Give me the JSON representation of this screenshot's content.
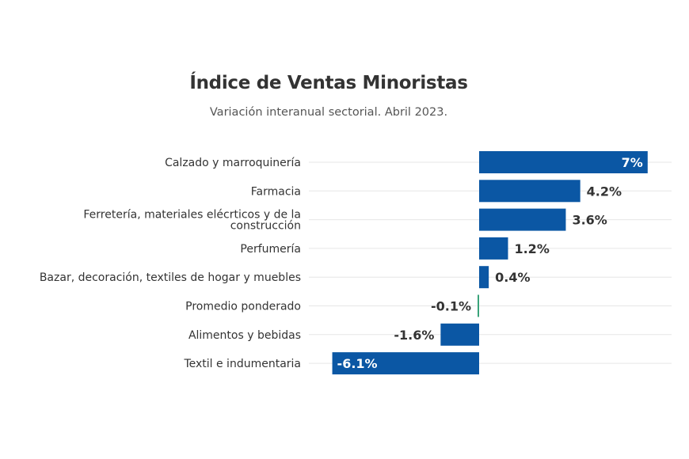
{
  "chart_data": {
    "type": "bar",
    "orientation": "horizontal",
    "title": "Índice de Ventas Minoristas",
    "subtitle": "Variación interanual sectorial. Abril 2023.",
    "categories": [
      "Calzado y marroquinería",
      "Farmacia",
      "Ferretería, materiales elécrticos y de la construcción",
      "Perfumería",
      "Bazar, decoración, textiles de hogar y muebles",
      "Promedio ponderado",
      "Alimentos y bebidas",
      "Textil e indumentaria"
    ],
    "values": [
      7,
      4.2,
      3.6,
      1.2,
      0.4,
      -0.1,
      -1.6,
      -6.1
    ],
    "data_labels": [
      "7%",
      "4.2%",
      "3.6%",
      "1.2%",
      "0.4%",
      "-0.1%",
      "-1.6%",
      "-6.1%"
    ],
    "unit": "%",
    "xlim": [
      -6.1,
      7
    ],
    "grid": true,
    "colors": {
      "bar": "#0b57a4",
      "highlight": "#3aa37a",
      "text": "#333333",
      "grid": "#e6e6e6"
    },
    "highlight_category": "Promedio ponderado"
  }
}
